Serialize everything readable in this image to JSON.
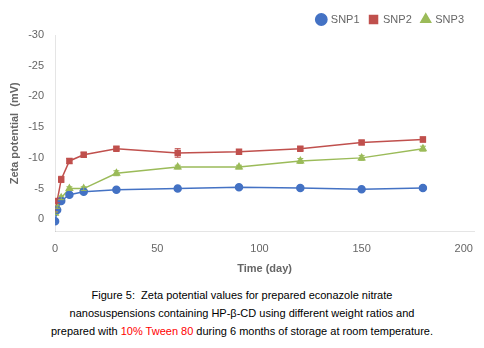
{
  "chart_data": {
    "type": "line",
    "x": [
      0,
      1,
      3,
      7,
      14,
      30,
      60,
      90,
      120,
      150,
      180
    ],
    "series": [
      {
        "name": "SNP1",
        "color": "#4472C4",
        "marker": "circle",
        "values": [
          0.3,
          -1.5,
          -3.0,
          -4.0,
          -4.5,
          -4.8,
          -5.0,
          -5.2,
          -5.1,
          -4.9,
          -5.1
        ],
        "yerr": [
          0.2,
          0.2,
          0.2,
          0.3,
          0.2,
          0.3,
          0.2,
          0.3,
          0.3,
          0.2,
          0.4
        ]
      },
      {
        "name": "SNP2",
        "color": "#C0504D",
        "marker": "square",
        "values": [
          -1.5,
          -3.0,
          -6.5,
          -9.5,
          -10.5,
          -11.5,
          -10.8,
          -11.0,
          -11.5,
          -12.5,
          -13.0
        ],
        "yerr": [
          0.3,
          0.3,
          0.5,
          0.4,
          0.4,
          0.3,
          0.7,
          0.3,
          0.3,
          0.3,
          0.4
        ]
      },
      {
        "name": "SNP3",
        "color": "#9BBB59",
        "marker": "triangle",
        "values": [
          -1.0,
          -2.0,
          -3.5,
          -5.0,
          -5.0,
          -7.5,
          -8.5,
          -8.5,
          -9.5,
          -10.0,
          -11.5
        ],
        "yerr": [
          0.2,
          0.2,
          0.3,
          0.3,
          0.3,
          0.4,
          0.3,
          0.3,
          0.4,
          0.4,
          0.4
        ]
      }
    ],
    "x_label": "Time (day)",
    "y_label": "Zeta potential  (mV)",
    "xlim": [
      0,
      205
    ],
    "xticks": [
      0,
      50,
      100,
      150,
      200
    ],
    "ylim": [
      2,
      -30
    ],
    "yticks": [
      -30,
      -25,
      -20,
      -15,
      -10,
      -5,
      0
    ],
    "grid": false,
    "legend": "upper right",
    "annotations": [
      [
        {
          "text": "Figure 5:  Zeta potential values for prepared econazole nitrate"
        }
      ],
      [
        {
          "text": "nanosuspensions containing HP-β-CD using different weight ratios and"
        }
      ],
      [
        {
          "text": "prepared with "
        },
        {
          "text": "10% Tween 80",
          "color": "red"
        },
        {
          "text": " during 6 months of storage at room temperature."
        }
      ]
    ]
  }
}
